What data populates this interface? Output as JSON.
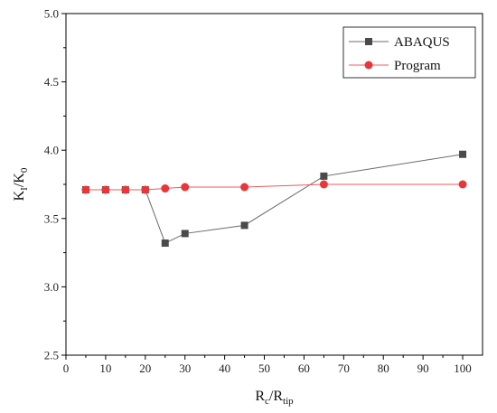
{
  "chart_data": {
    "type": "line",
    "xlabel": {
      "main": "R",
      "sub1": "c",
      "sep": "/R",
      "sub2": "tip"
    },
    "ylabel": {
      "main": "K",
      "sub1": "I",
      "sep": "/K",
      "sub2": "0"
    },
    "xlim": [
      0,
      105
    ],
    "ylim": [
      2.5,
      5.0
    ],
    "xticks": [
      0,
      10,
      20,
      30,
      40,
      50,
      60,
      70,
      80,
      90,
      100
    ],
    "yticks": [
      2.5,
      3.0,
      3.5,
      4.0,
      4.5,
      5.0
    ],
    "ytick_labels": [
      "2.5",
      "3.0",
      "3.5",
      "4.0",
      "4.5",
      "5.0"
    ],
    "grid": false,
    "legend_position": "top-right",
    "series": [
      {
        "name": "ABAQUS",
        "marker": "square",
        "color": "#4a4a4a",
        "line_color": "#6b6b6b",
        "x": [
          5,
          10,
          15,
          20,
          25,
          30,
          45,
          65,
          100
        ],
        "y": [
          3.71,
          3.71,
          3.71,
          3.71,
          3.32,
          3.39,
          3.45,
          3.81,
          3.97
        ]
      },
      {
        "name": "Program",
        "marker": "circle",
        "color": "#e8363a",
        "line_color": "#ef5a5c",
        "x": [
          5,
          10,
          15,
          20,
          25,
          30,
          45,
          65,
          100
        ],
        "y": [
          3.71,
          3.71,
          3.71,
          3.71,
          3.72,
          3.73,
          3.73,
          3.75,
          3.75
        ]
      }
    ]
  }
}
